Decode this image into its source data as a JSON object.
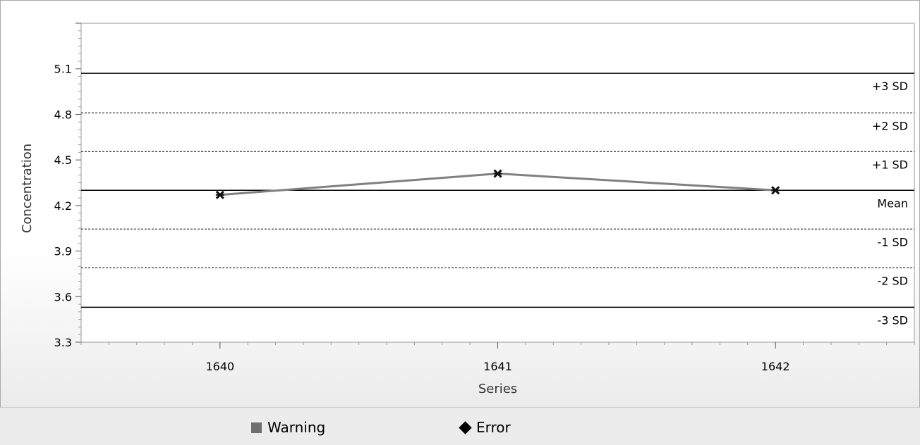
{
  "chart_data": {
    "type": "line",
    "xlabel": "Series",
    "ylabel": "Concentration",
    "categories": [
      "1640",
      "1641",
      "1642"
    ],
    "x_range": [
      1639.5,
      1642.5
    ],
    "ylim": [
      3.3,
      5.4
    ],
    "y_ticks": [
      "3.3",
      "3.6",
      "3.9",
      "4.2",
      "4.5",
      "4.8",
      "5.1"
    ],
    "series": [
      {
        "values": [
          4.27,
          4.41,
          4.3
        ],
        "color": "#808080",
        "marker": "cross"
      }
    ],
    "reference_lines": [
      {
        "label": "+3 SD",
        "value": 5.07,
        "style": "solid"
      },
      {
        "label": "+2 SD",
        "value": 4.81,
        "style": "dashed"
      },
      {
        "label": "+1 SD",
        "value": 4.555,
        "style": "dashed"
      },
      {
        "label": "Mean",
        "value": 4.3,
        "style": "solid"
      },
      {
        "label": "-1 SD",
        "value": 4.045,
        "style": "dashed"
      },
      {
        "label": "-2 SD",
        "value": 3.79,
        "style": "dashed"
      },
      {
        "label": "-3 SD",
        "value": 3.53,
        "style": "solid"
      }
    ],
    "grid": false
  },
  "legend": {
    "items": [
      {
        "label": "Warning",
        "symbol": "square",
        "color": "#6f6f6f"
      },
      {
        "label": "Error",
        "symbol": "diamond",
        "color": "#000000"
      }
    ]
  }
}
